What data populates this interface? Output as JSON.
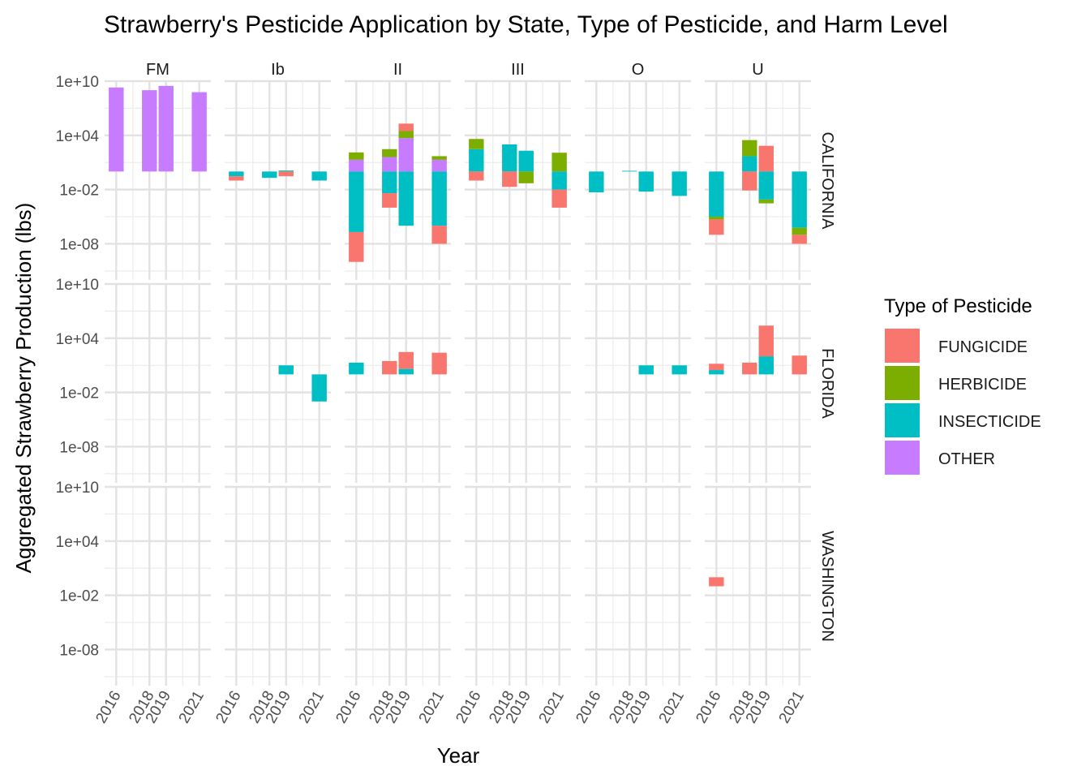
{
  "chart_data": {
    "type": "bar",
    "title": "Strawberry's Pesticide Application by State, Type of Pesticide, and Harm Level",
    "xlabel": "Year",
    "ylabel": "Aggregated Strawberry Production (lbs)",
    "y_scale": "log10",
    "ylim": [
      1e-12,
      10000000000.0
    ],
    "y_ticks": [
      1e-08,
      0.01,
      10000.0,
      10000000000.0
    ],
    "y_tick_labels": [
      "1e-08",
      "1e-02",
      "1e+04",
      "1e+10"
    ],
    "x_ticks": [
      2016,
      2018,
      2019,
      2021
    ],
    "x_tick_labels": [
      "2016",
      "2018",
      "2019",
      "2021"
    ],
    "xlim": [
      2015.3,
      2021.7
    ],
    "grid": true,
    "stacking": "stacked bars on a log10 axis, baseline 1 lb",
    "columns": [
      "FM",
      "Ib",
      "II",
      "III",
      "O",
      "U"
    ],
    "rows": [
      "CALIFORNIA",
      "FLORIDA",
      "WASHINGTON"
    ],
    "legend": {
      "title": "Type of Pesticide",
      "placement": "right",
      "entries": [
        {
          "name": "FUNGICIDE",
          "color": "#F8766D"
        },
        {
          "name": "HERBICIDE",
          "color": "#7CAE00"
        },
        {
          "name": "INSECTICIDE",
          "color": "#00BFC4"
        },
        {
          "name": "OTHER",
          "color": "#C77CFF"
        }
      ]
    },
    "segments": [
      {
        "state": "CALIFORNIA",
        "harm": "FM",
        "year": 2016,
        "type": "OTHER",
        "from": 1,
        "to": 2000000000.0
      },
      {
        "state": "CALIFORNIA",
        "harm": "FM",
        "year": 2018,
        "type": "OTHER",
        "from": 1,
        "to": 1000000000.0
      },
      {
        "state": "CALIFORNIA",
        "harm": "FM",
        "year": 2019,
        "type": "OTHER",
        "from": 1,
        "to": 3000000000.0
      },
      {
        "state": "CALIFORNIA",
        "harm": "FM",
        "year": 2021,
        "type": "OTHER",
        "from": 1,
        "to": 600000000.0
      },
      {
        "state": "CALIFORNIA",
        "harm": "Ib",
        "year": 2016,
        "type": "INSECTICIDE",
        "from": 1,
        "to": 0.3
      },
      {
        "state": "CALIFORNIA",
        "harm": "Ib",
        "year": 2016,
        "type": "FUNGICIDE",
        "from": 0.3,
        "to": 0.1
      },
      {
        "state": "CALIFORNIA",
        "harm": "Ib",
        "year": 2018,
        "type": "INSECTICIDE",
        "from": 1,
        "to": 0.2
      },
      {
        "state": "CALIFORNIA",
        "harm": "Ib",
        "year": 2019,
        "type": "INSECTICIDE",
        "from": 1,
        "to": 1.3
      },
      {
        "state": "CALIFORNIA",
        "harm": "Ib",
        "year": 2019,
        "type": "FUNGICIDE",
        "from": 1,
        "to": 0.3
      },
      {
        "state": "CALIFORNIA",
        "harm": "Ib",
        "year": 2021,
        "type": "INSECTICIDE",
        "from": 1,
        "to": 0.1
      },
      {
        "state": "CALIFORNIA",
        "harm": "II",
        "year": 2016,
        "type": "OTHER",
        "from": 1,
        "to": 20
      },
      {
        "state": "CALIFORNIA",
        "harm": "II",
        "year": 2016,
        "type": "HERBICIDE",
        "from": 20,
        "to": 130
      },
      {
        "state": "CALIFORNIA",
        "harm": "II",
        "year": 2016,
        "type": "INSECTICIDE",
        "from": 1,
        "to": 2e-07
      },
      {
        "state": "CALIFORNIA",
        "harm": "II",
        "year": 2016,
        "type": "FUNGICIDE",
        "from": 2e-07,
        "to": 1e-10
      },
      {
        "state": "CALIFORNIA",
        "harm": "II",
        "year": 2018,
        "type": "OTHER",
        "from": 1,
        "to": 40
      },
      {
        "state": "CALIFORNIA",
        "harm": "II",
        "year": 2018,
        "type": "HERBICIDE",
        "from": 40,
        "to": 300
      },
      {
        "state": "CALIFORNIA",
        "harm": "II",
        "year": 2018,
        "type": "INSECTICIDE",
        "from": 1,
        "to": 0.004
      },
      {
        "state": "CALIFORNIA",
        "harm": "II",
        "year": 2018,
        "type": "FUNGICIDE",
        "from": 0.004,
        "to": 0.0001
      },
      {
        "state": "CALIFORNIA",
        "harm": "II",
        "year": 2019,
        "type": "OTHER",
        "from": 1,
        "to": 5000
      },
      {
        "state": "CALIFORNIA",
        "harm": "II",
        "year": 2019,
        "type": "HERBICIDE",
        "from": 5000,
        "to": 30000
      },
      {
        "state": "CALIFORNIA",
        "harm": "II",
        "year": 2019,
        "type": "FUNGICIDE",
        "from": 30000,
        "to": 200000
      },
      {
        "state": "CALIFORNIA",
        "harm": "II",
        "year": 2019,
        "type": "INSECTICIDE",
        "from": 1,
        "to": 1e-06
      },
      {
        "state": "CALIFORNIA",
        "harm": "II",
        "year": 2021,
        "type": "OTHER",
        "from": 1,
        "to": 20
      },
      {
        "state": "CALIFORNIA",
        "harm": "II",
        "year": 2021,
        "type": "HERBICIDE",
        "from": 20,
        "to": 50
      },
      {
        "state": "CALIFORNIA",
        "harm": "II",
        "year": 2021,
        "type": "INSECTICIDE",
        "from": 1,
        "to": 1e-06
      },
      {
        "state": "CALIFORNIA",
        "harm": "II",
        "year": 2021,
        "type": "FUNGICIDE",
        "from": 1e-06,
        "to": 1e-08
      },
      {
        "state": "CALIFORNIA",
        "harm": "III",
        "year": 2016,
        "type": "INSECTICIDE",
        "from": 1,
        "to": 300
      },
      {
        "state": "CALIFORNIA",
        "harm": "III",
        "year": 2016,
        "type": "HERBICIDE",
        "from": 300,
        "to": 4000
      },
      {
        "state": "CALIFORNIA",
        "harm": "III",
        "year": 2016,
        "type": "FUNGICIDE",
        "from": 1,
        "to": 0.1
      },
      {
        "state": "CALIFORNIA",
        "harm": "III",
        "year": 2018,
        "type": "INSECTICIDE",
        "from": 1,
        "to": 1000
      },
      {
        "state": "CALIFORNIA",
        "harm": "III",
        "year": 2018,
        "type": "FUNGICIDE",
        "from": 1,
        "to": 0.02
      },
      {
        "state": "CALIFORNIA",
        "harm": "III",
        "year": 2019,
        "type": "INSECTICIDE",
        "from": 1,
        "to": 200
      },
      {
        "state": "CALIFORNIA",
        "harm": "III",
        "year": 2019,
        "type": "HERBICIDE",
        "from": 1,
        "to": 0.05
      },
      {
        "state": "CALIFORNIA",
        "harm": "III",
        "year": 2021,
        "type": "HERBICIDE",
        "from": 1,
        "to": 120
      },
      {
        "state": "CALIFORNIA",
        "harm": "III",
        "year": 2021,
        "type": "INSECTICIDE",
        "from": 1,
        "to": 0.01
      },
      {
        "state": "CALIFORNIA",
        "harm": "III",
        "year": 2021,
        "type": "FUNGICIDE",
        "from": 0.01,
        "to": 0.0001
      },
      {
        "state": "CALIFORNIA",
        "harm": "O",
        "year": 2016,
        "type": "INSECTICIDE",
        "from": 1,
        "to": 0.005
      },
      {
        "state": "CALIFORNIA",
        "harm": "O",
        "year": 2018,
        "type": "INSECTICIDE",
        "from": 1,
        "to": 1.2
      },
      {
        "state": "CALIFORNIA",
        "harm": "O",
        "year": 2019,
        "type": "INSECTICIDE",
        "from": 1,
        "to": 0.006
      },
      {
        "state": "CALIFORNIA",
        "harm": "O",
        "year": 2021,
        "type": "INSECTICIDE",
        "from": 1,
        "to": 0.002
      },
      {
        "state": "CALIFORNIA",
        "harm": "U",
        "year": 2016,
        "type": "INSECTICIDE",
        "from": 1,
        "to": 1e-05
      },
      {
        "state": "CALIFORNIA",
        "harm": "U",
        "year": 2016,
        "type": "HERBICIDE",
        "from": 1e-05,
        "to": 5e-06
      },
      {
        "state": "CALIFORNIA",
        "harm": "U",
        "year": 2016,
        "type": "FUNGICIDE",
        "from": 5e-06,
        "to": 1e-07
      },
      {
        "state": "CALIFORNIA",
        "harm": "U",
        "year": 2018,
        "type": "INSECTICIDE",
        "from": 1,
        "to": 50
      },
      {
        "state": "CALIFORNIA",
        "harm": "U",
        "year": 2018,
        "type": "HERBICIDE",
        "from": 50,
        "to": 3000
      },
      {
        "state": "CALIFORNIA",
        "harm": "U",
        "year": 2018,
        "type": "FUNGICIDE",
        "from": 1,
        "to": 0.008
      },
      {
        "state": "CALIFORNIA",
        "harm": "U",
        "year": 2019,
        "type": "FUNGICIDE",
        "from": 1,
        "to": 700
      },
      {
        "state": "CALIFORNIA",
        "harm": "U",
        "year": 2019,
        "type": "INSECTICIDE",
        "from": 1,
        "to": 0.0008
      },
      {
        "state": "CALIFORNIA",
        "harm": "U",
        "year": 2019,
        "type": "HERBICIDE",
        "from": 0.0008,
        "to": 0.0003
      },
      {
        "state": "CALIFORNIA",
        "harm": "U",
        "year": 2021,
        "type": "INSECTICIDE",
        "from": 1,
        "to": 6e-07
      },
      {
        "state": "CALIFORNIA",
        "harm": "U",
        "year": 2021,
        "type": "HERBICIDE",
        "from": 6e-07,
        "to": 1e-07
      },
      {
        "state": "CALIFORNIA",
        "harm": "U",
        "year": 2021,
        "type": "FUNGICIDE",
        "from": 1e-07,
        "to": 1e-08
      },
      {
        "state": "FLORIDA",
        "harm": "Ib",
        "year": 2019,
        "type": "INSECTICIDE",
        "from": 1,
        "to": 10
      },
      {
        "state": "FLORIDA",
        "harm": "Ib",
        "year": 2021,
        "type": "INSECTICIDE",
        "from": 1,
        "to": 0.001
      },
      {
        "state": "FLORIDA",
        "harm": "II",
        "year": 2016,
        "type": "INSECTICIDE",
        "from": 1,
        "to": 20
      },
      {
        "state": "FLORIDA",
        "harm": "II",
        "year": 2018,
        "type": "FUNGICIDE",
        "from": 1,
        "to": 30
      },
      {
        "state": "FLORIDA",
        "harm": "II",
        "year": 2019,
        "type": "INSECTICIDE",
        "from": 1,
        "to": 4
      },
      {
        "state": "FLORIDA",
        "harm": "II",
        "year": 2019,
        "type": "FUNGICIDE",
        "from": 4,
        "to": 300
      },
      {
        "state": "FLORIDA",
        "harm": "II",
        "year": 2021,
        "type": "FUNGICIDE",
        "from": 1,
        "to": 250
      },
      {
        "state": "FLORIDA",
        "harm": "O",
        "year": 2019,
        "type": "INSECTICIDE",
        "from": 1,
        "to": 10
      },
      {
        "state": "FLORIDA",
        "harm": "O",
        "year": 2021,
        "type": "INSECTICIDE",
        "from": 1,
        "to": 10
      },
      {
        "state": "FLORIDA",
        "harm": "U",
        "year": 2016,
        "type": "INSECTICIDE",
        "from": 1,
        "to": 3
      },
      {
        "state": "FLORIDA",
        "harm": "U",
        "year": 2016,
        "type": "FUNGICIDE",
        "from": 3,
        "to": 15
      },
      {
        "state": "FLORIDA",
        "harm": "U",
        "year": 2018,
        "type": "FUNGICIDE",
        "from": 1,
        "to": 20
      },
      {
        "state": "FLORIDA",
        "harm": "U",
        "year": 2019,
        "type": "INSECTICIDE",
        "from": 1,
        "to": 100
      },
      {
        "state": "FLORIDA",
        "harm": "U",
        "year": 2019,
        "type": "FUNGICIDE",
        "from": 100,
        "to": 250000
      },
      {
        "state": "FLORIDA",
        "harm": "U",
        "year": 2021,
        "type": "FUNGICIDE",
        "from": 1,
        "to": 120
      },
      {
        "state": "WASHINGTON",
        "harm": "U",
        "year": 2016,
        "type": "FUNGICIDE",
        "from": 0.1,
        "to": 1
      }
    ]
  }
}
